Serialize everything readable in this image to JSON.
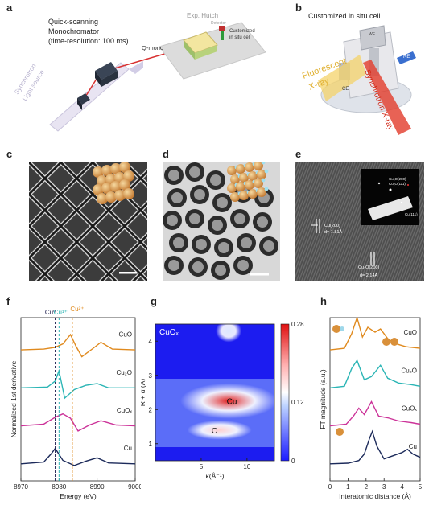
{
  "panels": {
    "a": {
      "label": "a",
      "exp_hutch": "Exp. Hutch",
      "detector": "Detector",
      "monochromator": [
        "Quick-scanning",
        "Monochromator",
        "(time-resolution: 100 ms)"
      ],
      "q_mono": "Q-mono",
      "light_source": [
        "Synchrotron",
        "Light source"
      ],
      "cell": [
        "Customized",
        "in situ cell"
      ]
    },
    "b": {
      "label": "b",
      "title": "Customized in situ cell",
      "fluorescent": [
        "Fluorescent",
        "X-ray"
      ],
      "synchrotron": "Synchrotron X-ray",
      "ce": "CE",
      "re": "RE",
      "we": "WE"
    },
    "c": {
      "label": "c"
    },
    "d": {
      "label": "d"
    },
    "e": {
      "label": "e",
      "cu_200": "Cu(200)",
      "d_181": "d= 1.81Å",
      "cu2o_200": "Cu₂O(200)",
      "d_214": "d= 2.14Å",
      "fft": [
        "Cu₂O(200)",
        "Cu₂O(111)",
        "Cu(111)"
      ]
    },
    "f": {
      "label": "f",
      "markers": [
        "Cu⁰",
        "Cu¹⁺",
        "Cu²⁺"
      ],
      "marker_colors": [
        "#1a1a4a",
        "#2bb5b5",
        "#e08a1e"
      ]
    },
    "g": {
      "label": "g",
      "inset_title": "CuOₓ",
      "label_cu": "Cu",
      "label_o": "O"
    },
    "h": {
      "label": "h"
    }
  },
  "chart_data": [
    {
      "type": "line",
      "panel": "f",
      "xlabel": "Energy (eV)",
      "ylabel": "Normalized 1st derivative",
      "xlim": [
        8970,
        9000
      ],
      "xticks": [
        "8970",
        "8980",
        "8990",
        "9000"
      ],
      "series": [
        {
          "name": "CuO",
          "color": "#e08a1e",
          "x": [
            8970,
            8976,
            8979,
            8981,
            8983,
            8984.5,
            8986,
            8989,
            8991,
            8994,
            9000
          ],
          "y": [
            0.0,
            0.05,
            0.15,
            0.35,
            0.9,
            0.2,
            -0.4,
            0.1,
            0.45,
            0.05,
            0.0
          ]
        },
        {
          "name": "Cu₂O",
          "color": "#2bb5b5",
          "x": [
            8970,
            8977,
            8979,
            8980,
            8981.5,
            8984,
            8987,
            8990,
            8993,
            9000
          ],
          "y": [
            0.0,
            0.05,
            0.4,
            1.0,
            -0.6,
            -0.1,
            0.15,
            0.25,
            0.0,
            0.0
          ]
        },
        {
          "name": "CuOₓ",
          "color": "#cc3399",
          "x": [
            8970,
            8976,
            8979,
            8981,
            8983,
            8985,
            8988,
            8991,
            8995,
            9000
          ],
          "y": [
            0.0,
            0.1,
            0.5,
            0.7,
            0.45,
            -0.3,
            0.05,
            0.3,
            0.05,
            0.0
          ]
        },
        {
          "name": "Cu",
          "color": "#1c2a5a",
          "x": [
            8970,
            8976,
            8978,
            8979,
            8981,
            8984,
            8987,
            8990,
            8993,
            9000
          ],
          "y": [
            0.0,
            0.1,
            0.6,
            0.9,
            0.2,
            -0.1,
            0.15,
            0.35,
            0.05,
            0.0
          ]
        }
      ],
      "markers_x": [
        8979,
        8980,
        8983.5
      ]
    },
    {
      "type": "heatmap",
      "panel": "g",
      "xlabel": "κ(Å⁻¹)",
      "ylabel": "R + α (Å)",
      "xlim": [
        0,
        13
      ],
      "ylim": [
        0.5,
        4.5
      ],
      "xticks": [
        5,
        10
      ],
      "yticks": [
        1,
        2,
        3,
        4
      ],
      "colorbar": {
        "min": 0,
        "max": 0.28,
        "ticks": [
          "0",
          "0.12",
          "0.28"
        ]
      },
      "features": [
        {
          "label": "Cu",
          "k": 8.0,
          "r": 2.25,
          "value": 0.26
        },
        {
          "label": "O",
          "k": 7.0,
          "r": 1.4,
          "value": 0.14
        },
        {
          "label": "",
          "k": 8.0,
          "r": 4.3,
          "value": 0.08
        }
      ]
    },
    {
      "type": "line",
      "panel": "h",
      "xlabel": "Interatomic distance (Å)",
      "ylabel": "FT magnitude (a.u.)",
      "xlim": [
        0,
        5
      ],
      "xticks": [
        "0",
        "1",
        "2",
        "3",
        "4",
        "5"
      ],
      "series": [
        {
          "name": "CuO",
          "color": "#e08a1e",
          "x": [
            0,
            0.8,
            1.2,
            1.5,
            1.8,
            2.1,
            2.5,
            2.8,
            3.2,
            3.6,
            4.2,
            5.0
          ],
          "y": [
            0.0,
            0.05,
            0.5,
            1.0,
            0.4,
            0.7,
            0.55,
            0.65,
            0.35,
            0.2,
            0.1,
            0.05
          ]
        },
        {
          "name": "Cu₂O",
          "color": "#2bb5b5",
          "x": [
            0,
            0.8,
            1.2,
            1.5,
            1.9,
            2.3,
            2.8,
            3.2,
            3.8,
            4.5,
            5.0
          ],
          "y": [
            0.0,
            0.05,
            0.6,
            0.85,
            0.25,
            0.35,
            0.7,
            0.3,
            0.15,
            0.1,
            0.05
          ]
        },
        {
          "name": "CuOₓ",
          "color": "#cc3399",
          "x": [
            0,
            0.9,
            1.3,
            1.6,
            1.9,
            2.3,
            2.7,
            3.2,
            3.8,
            4.5,
            5.0
          ],
          "y": [
            0.0,
            0.05,
            0.3,
            0.55,
            0.35,
            0.75,
            0.3,
            0.25,
            0.15,
            0.1,
            0.05
          ]
        },
        {
          "name": "Cu",
          "color": "#1c2a5a",
          "x": [
            0,
            1.0,
            1.6,
            1.9,
            2.2,
            2.35,
            2.6,
            3.0,
            3.5,
            4.0,
            4.3,
            4.6,
            5.0
          ],
          "y": [
            0.0,
            0.02,
            0.1,
            0.3,
            0.8,
            1.0,
            0.55,
            0.15,
            0.25,
            0.35,
            0.45,
            0.3,
            0.2
          ]
        }
      ]
    }
  ]
}
